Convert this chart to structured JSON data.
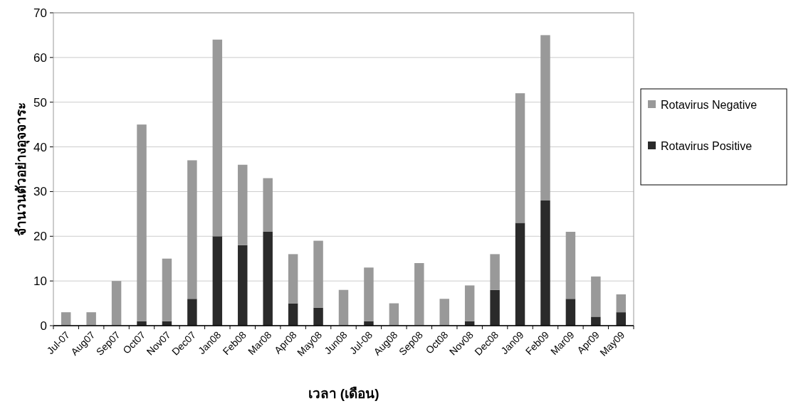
{
  "chart_data": {
    "type": "bar",
    "stacked": true,
    "xlabel": "เวลา (เดือน)",
    "ylabel": "จำนวนตัวอย่างอุจจาระ",
    "categories": [
      "Jul-07",
      "Aug07",
      "Sep07",
      "Oct07",
      "Nov07",
      "Dec07",
      "Jan08",
      "Feb08",
      "Mar08",
      "Apr08",
      "May08",
      "Jun08",
      "Jul-08",
      "Aug08",
      "Sep08",
      "Oct08",
      "Nov08",
      "Dec08",
      "Jan09",
      "Feb09",
      "Mar09",
      "Apr09",
      "May09"
    ],
    "series": [
      {
        "name": "Rotavirus Positive",
        "color": "#2a2a2a",
        "values": [
          0,
          0,
          0,
          1,
          1,
          6,
          20,
          18,
          21,
          5,
          4,
          0,
          1,
          0,
          0,
          0,
          1,
          8,
          23,
          28,
          6,
          2,
          3
        ]
      },
      {
        "name": "Rotavirus Negative",
        "color": "#999999",
        "values": [
          3,
          3,
          10,
          44,
          14,
          31,
          44,
          18,
          12,
          11,
          15,
          8,
          12,
          5,
          14,
          6,
          8,
          8,
          29,
          37,
          15,
          9,
          4
        ]
      }
    ],
    "ylim": [
      0,
      70
    ],
    "yticks": [
      0,
      10,
      20,
      30,
      40,
      50,
      60,
      70
    ],
    "grid": "y",
    "legend": "right"
  }
}
